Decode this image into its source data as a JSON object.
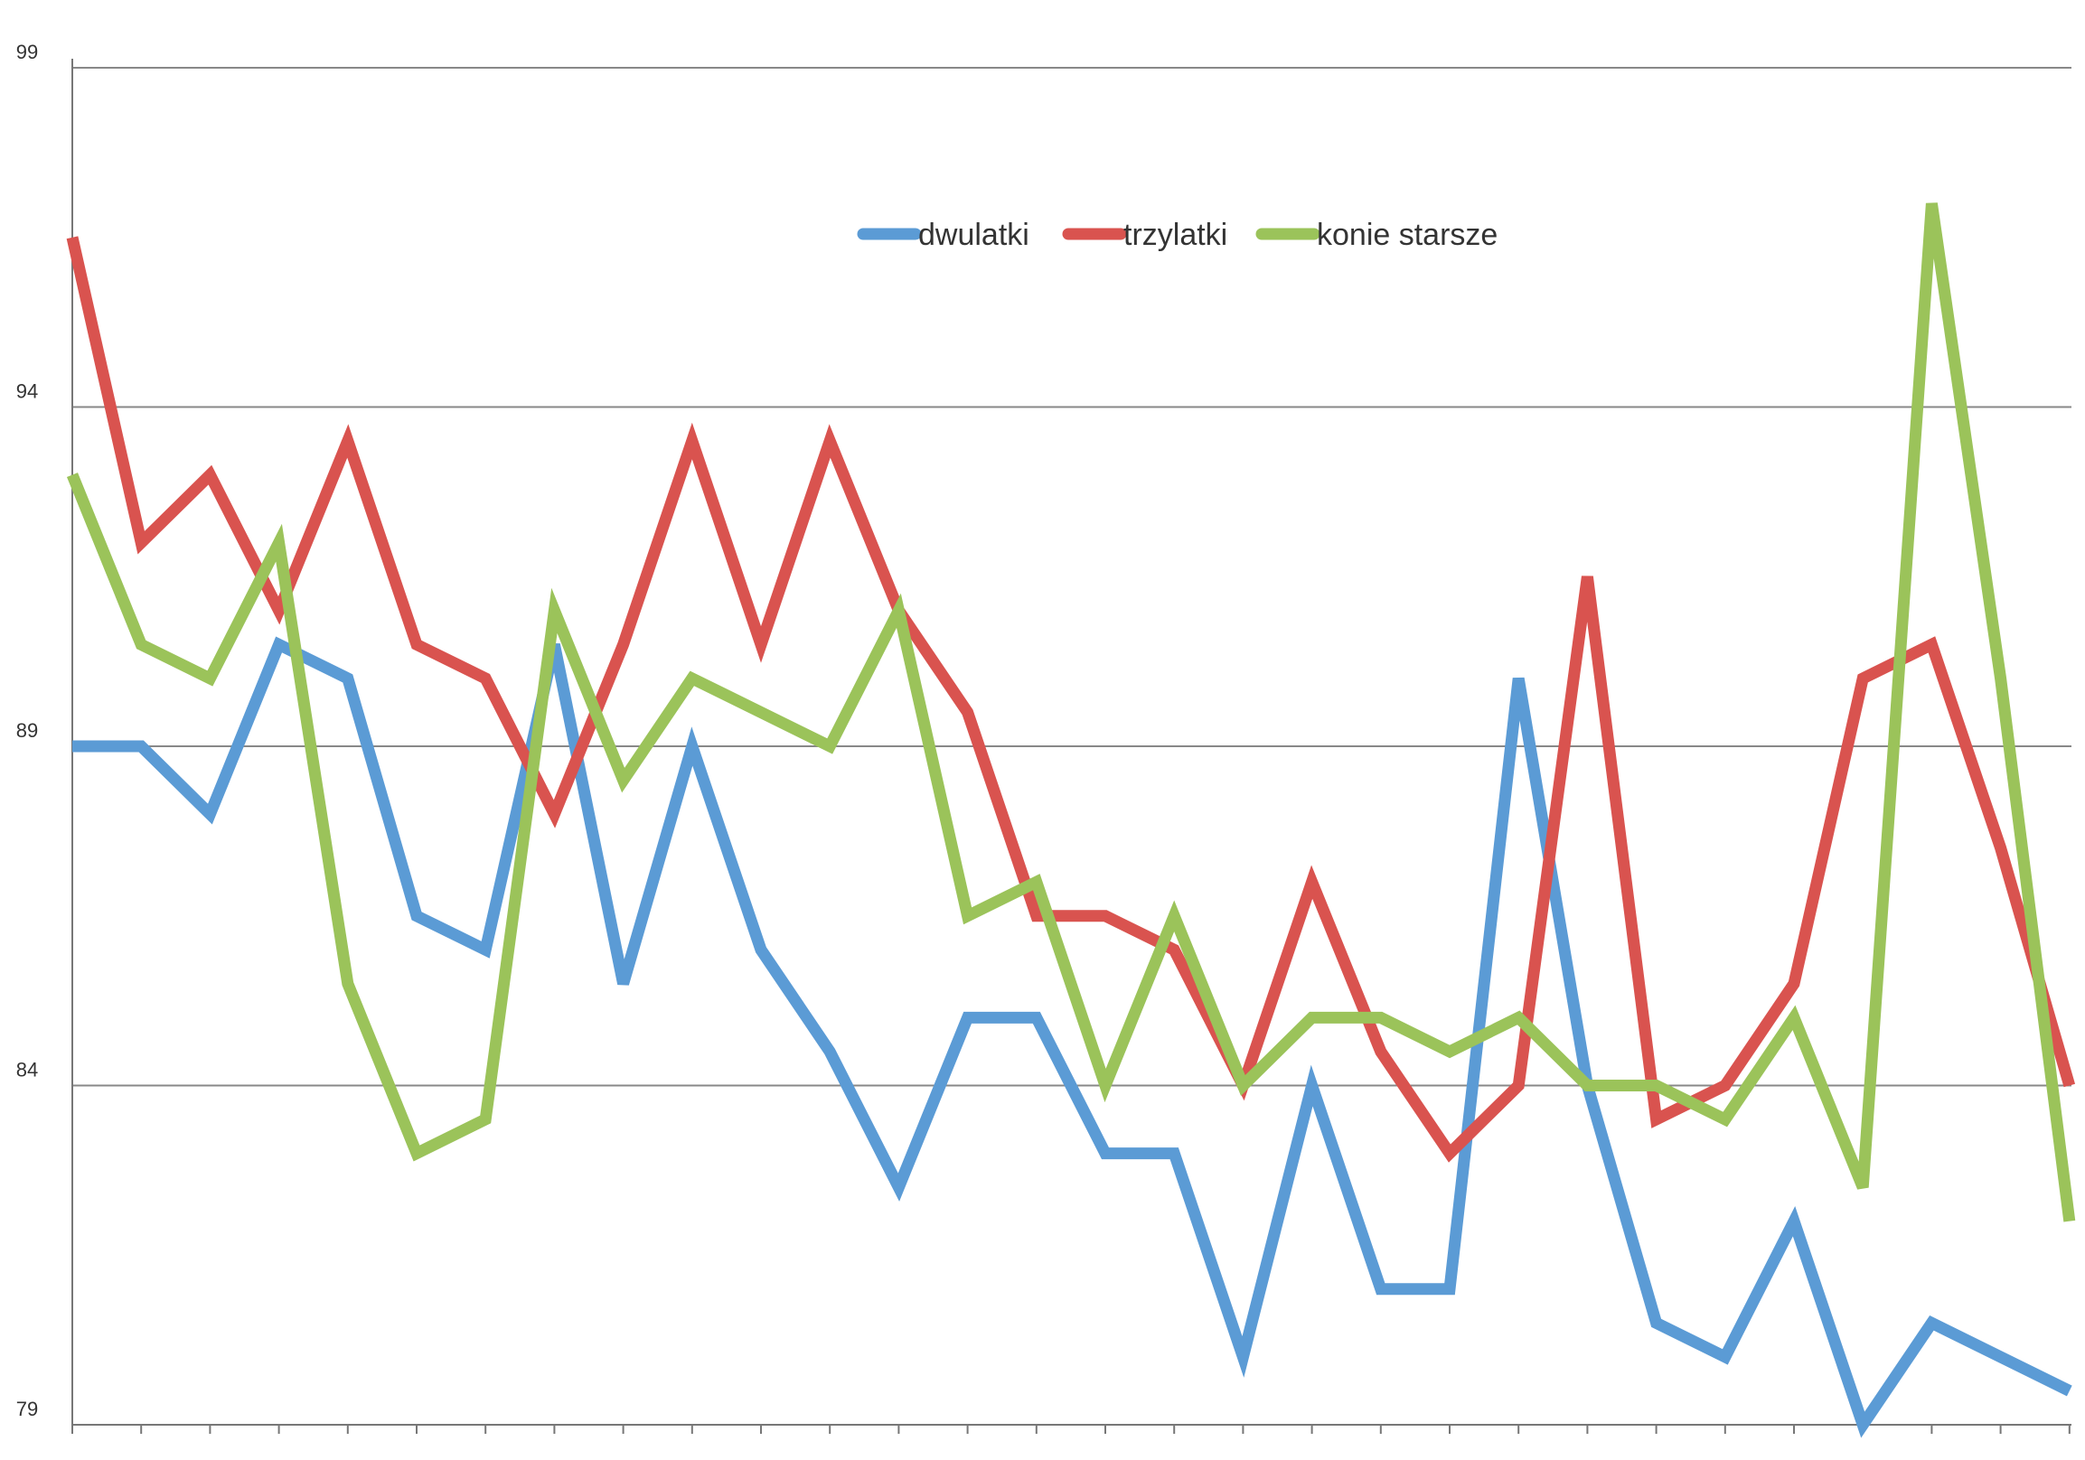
{
  "chart_data": {
    "type": "line",
    "title": "",
    "xlabel": "",
    "ylabel": "",
    "ylim": [
      79,
      99
    ],
    "yticks": [
      79,
      84,
      89,
      94,
      99
    ],
    "grid": true,
    "legend_position": "top-center",
    "x": [
      1,
      2,
      3,
      4,
      5,
      6,
      7,
      8,
      9,
      10,
      11,
      12,
      13,
      14,
      15,
      16,
      17,
      18,
      19,
      20,
      21,
      22,
      23,
      24,
      25,
      26,
      27,
      28,
      29,
      30
    ],
    "series": [
      {
        "name": "dwulatki",
        "color": "#5B9BD5",
        "values": [
          89,
          89,
          88,
          90.5,
          90,
          86.5,
          86,
          90.5,
          85.5,
          89,
          86,
          84.5,
          82.5,
          85,
          85,
          83,
          83,
          80,
          84,
          81,
          81,
          90,
          84,
          80.5,
          80,
          82,
          79,
          80.5,
          80,
          79.5
        ]
      },
      {
        "name": "trzylatki",
        "color": "#D9534F",
        "values": [
          96.5,
          92,
          93,
          91,
          93.5,
          90.5,
          90,
          88,
          90.5,
          93.5,
          90.5,
          93.5,
          91,
          89.5,
          86.5,
          86.5,
          86,
          84,
          87,
          84.5,
          83,
          84,
          91.5,
          83.5,
          84,
          85.5,
          90,
          90.5,
          87.5,
          84
        ]
      },
      {
        "name": "konie starsze",
        "color": "#9BC35A",
        "values": [
          93,
          90.5,
          90,
          92,
          85.5,
          83,
          83.5,
          91,
          88.5,
          90,
          89.5,
          89,
          91,
          86.5,
          87,
          84,
          86.5,
          84,
          85,
          85,
          84.5,
          85,
          84,
          84,
          83.5,
          85,
          82.5,
          97,
          90,
          82
        ]
      }
    ]
  }
}
